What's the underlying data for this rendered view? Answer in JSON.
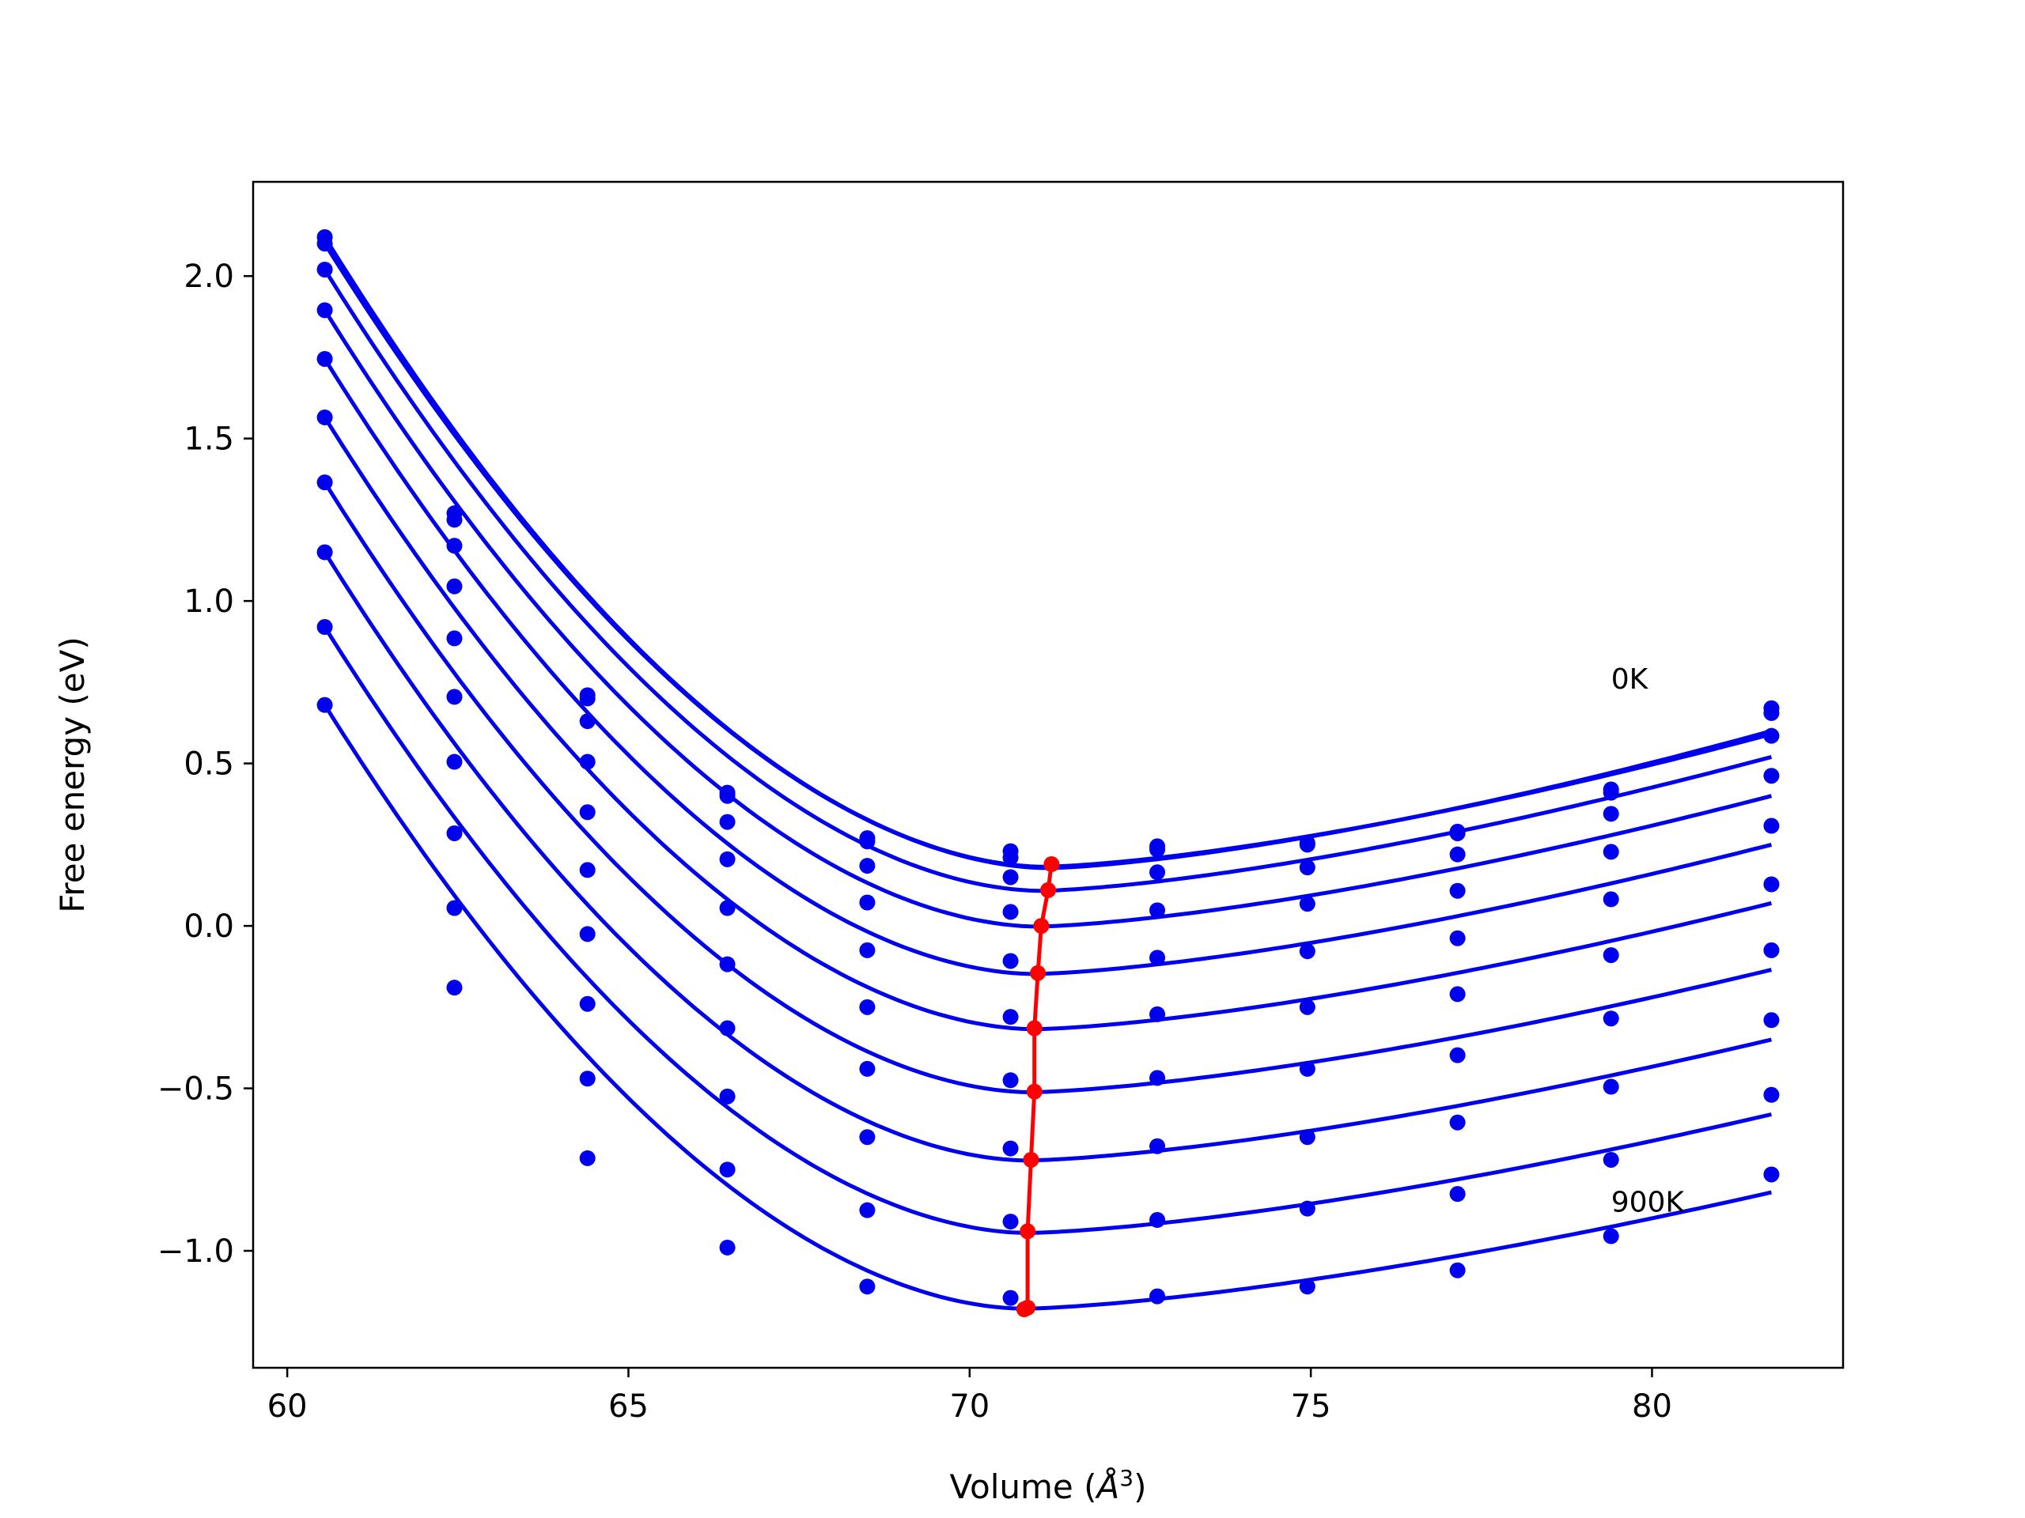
{
  "chart_data": {
    "type": "line",
    "xlabel": "Volume (Å³)",
    "xlabel_main": "Volume (",
    "xlabel_unit": "Å",
    "xlabel_sup": "3",
    "xlabel_close": ")",
    "ylabel": "Free energy (eV)",
    "xlim": [
      59.5,
      82.8
    ],
    "ylim": [
      -1.36,
      2.29
    ],
    "xticks": [
      60,
      65,
      70,
      75,
      80
    ],
    "yticks": [
      -1.0,
      -0.5,
      0.0,
      0.5,
      1.0,
      1.5,
      2.0
    ],
    "grid": false,
    "x": [
      60.55,
      62.45,
      64.4,
      66.45,
      68.5,
      70.6,
      72.75,
      74.95,
      77.15,
      79.4,
      81.75
    ],
    "series": [
      {
        "values": [
          2.12,
          1.27,
          0.71,
          0.41,
          0.27,
          0.23,
          0.245,
          0.255,
          0.29,
          0.42,
          0.67
        ],
        "color": "#0000ee",
        "line_min": [
          71.1,
          0.182
        ]
      },
      {
        "values": [
          2.1,
          1.25,
          0.7,
          0.4,
          0.26,
          0.21,
          0.235,
          0.25,
          0.285,
          0.41,
          0.655
        ],
        "color": "#0000ee",
        "line_min": [
          71.15,
          0.178
        ]
      },
      {
        "values": [
          2.02,
          1.17,
          0.63,
          0.32,
          0.185,
          0.15,
          0.165,
          0.18,
          0.22,
          0.345,
          0.585
        ],
        "color": "#0000ee",
        "line_min": [
          71.05,
          0.108
        ]
      },
      {
        "values": [
          1.895,
          1.045,
          0.505,
          0.205,
          0.072,
          0.043,
          0.048,
          0.068,
          0.108,
          0.228,
          0.462
        ],
        "color": "#0000ee",
        "line_min": [
          71.0,
          -0.002
        ]
      },
      {
        "values": [
          1.745,
          0.885,
          0.35,
          0.055,
          -0.075,
          -0.108,
          -0.098,
          -0.078,
          -0.038,
          0.082,
          0.308
        ],
        "color": "#0000ee",
        "line_min": [
          70.95,
          -0.148
        ]
      },
      {
        "values": [
          1.565,
          0.705,
          0.172,
          -0.118,
          -0.25,
          -0.28,
          -0.272,
          -0.25,
          -0.21,
          -0.09,
          0.128
        ],
        "color": "#0000ee",
        "line_min": [
          70.95,
          -0.318
        ]
      },
      {
        "values": [
          1.365,
          0.505,
          -0.025,
          -0.315,
          -0.44,
          -0.475,
          -0.468,
          -0.44,
          -0.398,
          -0.285,
          -0.075
        ],
        "color": "#0000ee",
        "line_min": [
          70.9,
          -0.512
        ]
      },
      {
        "values": [
          1.15,
          0.285,
          -0.24,
          -0.525,
          -0.65,
          -0.685,
          -0.678,
          -0.65,
          -0.605,
          -0.495,
          -0.29
        ],
        "color": "#0000ee",
        "line_min": [
          70.85,
          -0.722
        ]
      },
      {
        "values": [
          0.92,
          0.055,
          -0.47,
          -0.75,
          -0.875,
          -0.91,
          -0.905,
          -0.87,
          -0.825,
          -0.72,
          -0.52
        ],
        "color": "#0000ee",
        "line_min": [
          70.85,
          -0.945
        ]
      },
      {
        "values": [
          0.68,
          -0.19,
          -0.715,
          -0.99,
          -1.11,
          -1.145,
          -1.14,
          -1.11,
          -1.06,
          -0.955,
          -0.765
        ],
        "color": "#0000ee",
        "line_min": [
          70.8,
          -1.178
        ]
      }
    ],
    "line_end_values": [
      0.59,
      0.6,
      0.52,
      0.4,
      0.25,
      0.07,
      -0.135,
      -0.35,
      -0.58,
      -0.82
    ],
    "minima_curve": {
      "color": "#ff0000",
      "x": [
        71.2,
        71.15,
        71.05,
        71.0,
        70.95,
        70.95,
        70.9,
        70.85,
        70.85,
        70.8
      ],
      "y": [
        0.19,
        0.11,
        0.0,
        -0.145,
        -0.315,
        -0.51,
        -0.72,
        -0.94,
        -1.175,
        -1.18
      ]
    },
    "annotations": [
      {
        "text": "0K",
        "x": 79.4,
        "y": 0.73
      },
      {
        "text": "900K",
        "x": 79.4,
        "y": -0.88
      }
    ]
  }
}
